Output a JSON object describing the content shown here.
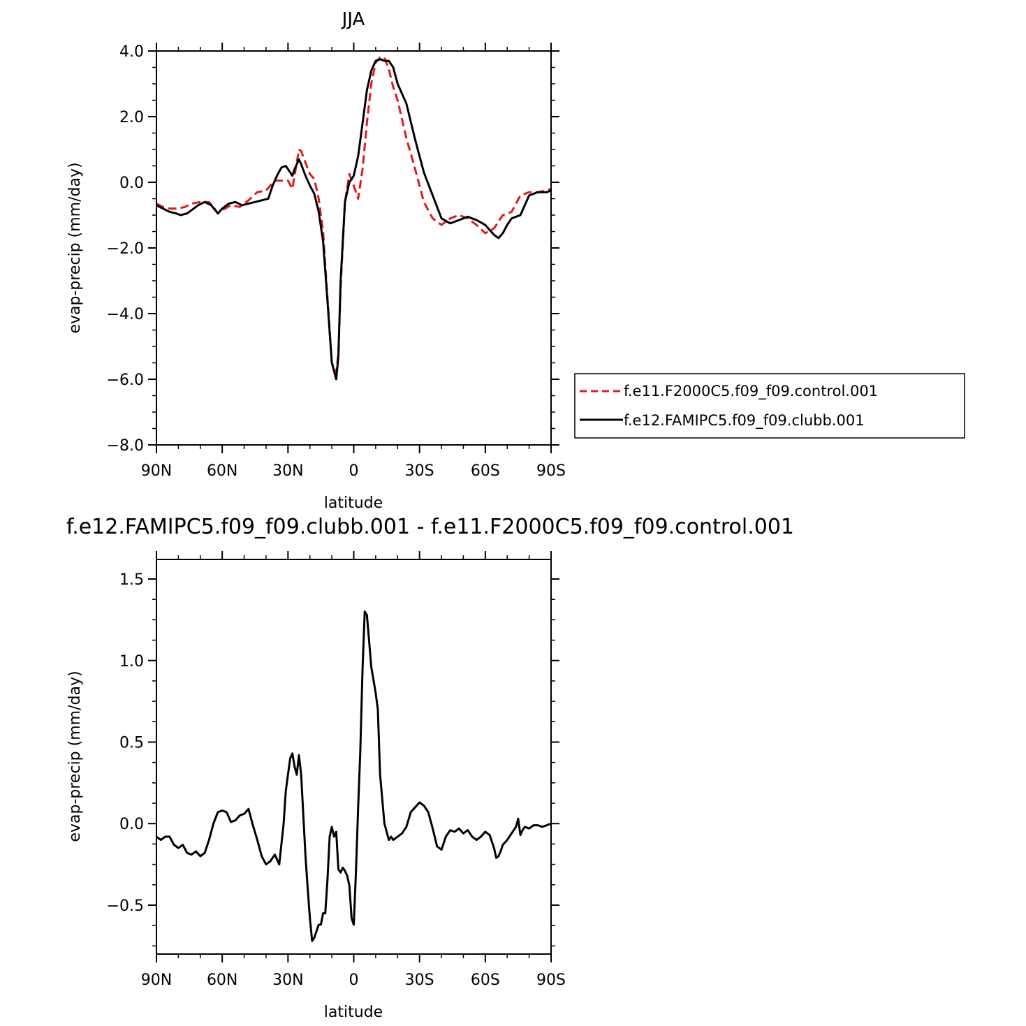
{
  "figure": {
    "title_top": "JJA",
    "title_bottom": "f.e12.FAMIPC5.f09_f09.clubb.001 - f.e11.F2000C5.f09_f09.control.001"
  },
  "chart_data": [
    {
      "type": "line",
      "title": "JJA",
      "xlabel": "latitude",
      "ylabel": "evap-precip (mm/day)",
      "xlim": [
        90,
        -90
      ],
      "ylim": [
        -8,
        4
      ],
      "x_ticks": [
        90,
        60,
        30,
        0,
        -30,
        -60,
        -90
      ],
      "x_tick_labels": [
        "90N",
        "60N",
        "30N",
        "0",
        "30S",
        "60S",
        "90S"
      ],
      "y_ticks": [
        4,
        2,
        0,
        -2,
        -4,
        -6,
        -8
      ],
      "y_tick_labels": [
        "4.0",
        "2.0",
        "0.0",
        "−2.0",
        "−4.0",
        "−6.0",
        "−8.0"
      ],
      "legend": "right",
      "series": [
        {
          "name": "f.e11.F2000C5.f09_f09.control.001",
          "color": "#e31a1c",
          "dash": "dashed",
          "x": [
            90,
            87,
            84,
            80,
            77,
            74,
            70,
            66,
            64,
            62,
            60,
            56,
            52,
            48,
            44,
            40,
            36,
            33,
            30,
            28,
            26,
            25,
            24,
            22,
            20,
            18,
            16,
            14,
            12,
            10,
            8,
            7,
            6,
            4,
            2,
            0,
            -2,
            -4,
            -6,
            -8,
            -10,
            -12,
            -14,
            -16,
            -18,
            -20,
            -24,
            -28,
            -32,
            -36,
            -40,
            -44,
            -48,
            -52,
            -56,
            -60,
            -64,
            -66,
            -68,
            -72,
            -76,
            -80,
            -84,
            -88,
            -90
          ],
          "y": [
            -0.65,
            -0.75,
            -0.8,
            -0.8,
            -0.75,
            -0.65,
            -0.6,
            -0.6,
            -0.75,
            -0.95,
            -0.85,
            -0.7,
            -0.75,
            -0.55,
            -0.3,
            -0.25,
            0.05,
            0.05,
            0.05,
            -0.2,
            0.6,
            1.0,
            0.95,
            0.6,
            0.25,
            0.1,
            -0.5,
            -1.5,
            -3.5,
            -5.5,
            -5.8,
            -5.2,
            -3.2,
            -0.6,
            0.25,
            -0.1,
            -0.5,
            0.4,
            1.8,
            3.0,
            3.65,
            3.8,
            3.8,
            3.45,
            2.9,
            2.5,
            1.35,
            0.4,
            -0.6,
            -1.1,
            -1.3,
            -1.1,
            -1.0,
            -1.1,
            -1.3,
            -1.55,
            -1.4,
            -1.2,
            -1.0,
            -0.9,
            -0.4,
            -0.3,
            -0.3,
            -0.25,
            -0.2
          ]
        },
        {
          "name": "f.e12.FAMIPC5.f09_f09.clubb.001",
          "color": "#000000",
          "dash": "solid",
          "x": [
            90,
            87,
            84,
            81,
            79,
            76,
            74,
            71,
            68,
            65,
            62,
            60,
            57,
            54,
            51,
            48,
            45,
            42,
            39,
            37,
            35,
            33,
            31,
            29,
            28,
            27,
            25,
            24,
            22,
            20,
            18,
            16,
            14,
            12,
            10,
            8,
            7,
            6,
            4,
            2,
            0,
            -2,
            -4,
            -6,
            -8,
            -10,
            -12,
            -14,
            -16,
            -18,
            -20,
            -24,
            -28,
            -32,
            -36,
            -40,
            -44,
            -48,
            -52,
            -56,
            -60,
            -64,
            -66,
            -68,
            -70,
            -72,
            -76,
            -80,
            -84,
            -88,
            -90
          ],
          "y": [
            -0.7,
            -0.8,
            -0.9,
            -0.95,
            -1.0,
            -0.95,
            -0.85,
            -0.7,
            -0.6,
            -0.7,
            -0.95,
            -0.8,
            -0.65,
            -0.6,
            -0.7,
            -0.65,
            -0.6,
            -0.55,
            -0.5,
            -0.1,
            0.2,
            0.45,
            0.5,
            0.3,
            0.2,
            0.4,
            0.7,
            0.55,
            0.2,
            -0.1,
            -0.35,
            -0.9,
            -1.8,
            -3.6,
            -5.5,
            -6.0,
            -5.3,
            -3.0,
            -0.6,
            0.0,
            0.2,
            0.8,
            1.8,
            2.8,
            3.4,
            3.7,
            3.75,
            3.7,
            3.7,
            3.5,
            3.0,
            2.4,
            1.3,
            0.3,
            -0.4,
            -1.1,
            -1.25,
            -1.15,
            -1.05,
            -1.15,
            -1.3,
            -1.6,
            -1.7,
            -1.55,
            -1.3,
            -1.1,
            -1.0,
            -0.4,
            -0.3,
            -0.3,
            -0.25
          ]
        }
      ]
    },
    {
      "type": "line",
      "title": "f.e12.FAMIPC5.f09_f09.clubb.001 - f.e11.F2000C5.f09_f09.control.001",
      "xlabel": "latitude",
      "ylabel": "evap-precip (mm/day)",
      "xlim": [
        90,
        -90
      ],
      "ylim": [
        -0.8,
        1.62
      ],
      "x_ticks": [
        90,
        60,
        30,
        0,
        -30,
        -60,
        -90
      ],
      "x_tick_labels": [
        "90N",
        "60N",
        "30N",
        "0",
        "30S",
        "60S",
        "90S"
      ],
      "y_ticks": [
        1.5,
        1.0,
        0.5,
        0.0,
        -0.5
      ],
      "y_tick_labels": [
        "1.5",
        "1.0",
        "0.5",
        "0.0",
        "−0.5"
      ],
      "series": [
        {
          "color": "#000000",
          "dash": "solid",
          "x": [
            90,
            88,
            86,
            84,
            82,
            80,
            78,
            76,
            74,
            72,
            70,
            68,
            66,
            64,
            62,
            60,
            58,
            56,
            54,
            52,
            50,
            48,
            46,
            44,
            42,
            40,
            38,
            36,
            34,
            32,
            31,
            30,
            29,
            28,
            27,
            26,
            25,
            24,
            22,
            21,
            20,
            19,
            18,
            17,
            16,
            15,
            14,
            13,
            12,
            11,
            10,
            9,
            8,
            7,
            6,
            5,
            4,
            3,
            2,
            1,
            0,
            -1,
            -2,
            -3,
            -4,
            -5,
            -6,
            -7,
            -8,
            -9,
            -10,
            -11,
            -12,
            -13,
            -14,
            -15,
            -16,
            -17,
            -18,
            -20,
            -22,
            -24,
            -26,
            -28,
            -30,
            -32,
            -34,
            -36,
            -38,
            -40,
            -42,
            -44,
            -46,
            -48,
            -50,
            -52,
            -54,
            -56,
            -58,
            -60,
            -62,
            -64,
            -65,
            -66,
            -67,
            -68,
            -70,
            -72,
            -74,
            -75,
            -76,
            -77,
            -78,
            -80,
            -82,
            -84,
            -86,
            -88,
            -90
          ],
          "y": [
            -0.08,
            -0.1,
            -0.08,
            -0.08,
            -0.13,
            -0.15,
            -0.13,
            -0.18,
            -0.19,
            -0.17,
            -0.2,
            -0.18,
            -0.1,
            0.0,
            0.07,
            0.08,
            0.07,
            0.01,
            0.02,
            0.05,
            0.06,
            0.09,
            -0.01,
            -0.1,
            -0.2,
            -0.25,
            -0.23,
            -0.19,
            -0.25,
            0.0,
            0.2,
            0.3,
            0.4,
            0.43,
            0.35,
            0.3,
            0.42,
            0.3,
            -0.2,
            -0.4,
            -0.58,
            -0.72,
            -0.7,
            -0.66,
            -0.62,
            -0.62,
            -0.55,
            -0.55,
            -0.35,
            -0.08,
            -0.02,
            -0.08,
            -0.05,
            -0.28,
            -0.3,
            -0.27,
            -0.29,
            -0.32,
            -0.38,
            -0.58,
            -0.62,
            -0.3,
            0.1,
            0.45,
            0.95,
            1.3,
            1.28,
            1.12,
            0.96,
            0.88,
            0.8,
            0.7,
            0.3,
            0.15,
            0.0,
            -0.05,
            -0.1,
            -0.08,
            -0.1,
            -0.08,
            -0.06,
            -0.02,
            0.07,
            0.1,
            0.13,
            0.11,
            0.07,
            -0.03,
            -0.14,
            -0.16,
            -0.08,
            -0.04,
            -0.05,
            -0.03,
            -0.06,
            -0.04,
            -0.08,
            -0.1,
            -0.08,
            -0.05,
            -0.07,
            -0.15,
            -0.21,
            -0.2,
            -0.17,
            -0.13,
            -0.1,
            -0.06,
            -0.02,
            0.03,
            -0.07,
            -0.04,
            -0.02,
            -0.03,
            -0.01,
            -0.01,
            -0.02,
            -0.01,
            0.0
          ]
        }
      ]
    }
  ]
}
